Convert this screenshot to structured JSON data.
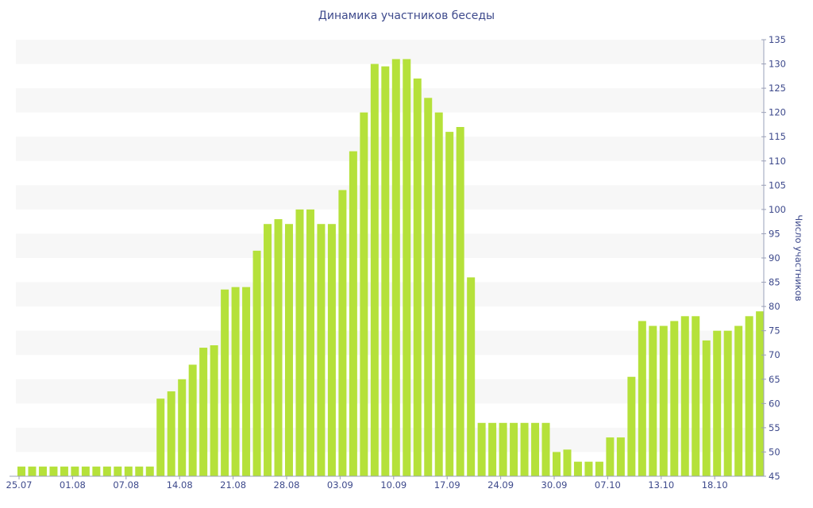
{
  "chart_data": {
    "type": "bar",
    "title": "Динамика участников беседы",
    "ylabel": "Число участников",
    "xlabel": "",
    "ylim": [
      45,
      135
    ],
    "ytick_step": 5,
    "y_axis_side": "right",
    "grid": "alternating horizontal bands",
    "bar_color": "#b5e13a",
    "band_color": "#f7f7f7",
    "text_color": "#3e4a8c",
    "x_tick_labels": [
      "25.07",
      "01.08",
      "07.08",
      "14.08",
      "21.08",
      "28.08",
      "03.09",
      "10.09",
      "17.09",
      "24.09",
      "30.09",
      "07.10",
      "13.10",
      "18.10"
    ],
    "x_tick_at_bar": [
      0,
      5,
      10,
      15,
      20,
      25,
      30,
      35,
      40,
      45,
      50,
      55,
      60,
      65
    ],
    "values": [
      47,
      47,
      47,
      47,
      47,
      47,
      47,
      47,
      47,
      47,
      47,
      47,
      47,
      61,
      62.5,
      65,
      68,
      71.5,
      72,
      83.5,
      84,
      84,
      91.5,
      97,
      98,
      97,
      100,
      100,
      97,
      97,
      104,
      112,
      120,
      130,
      129.5,
      131,
      131,
      127,
      123,
      120,
      116,
      117,
      86,
      56,
      56,
      56,
      56,
      56,
      56,
      56,
      50,
      50.5,
      48,
      48,
      48,
      53,
      53,
      65.5,
      77,
      76,
      76,
      77,
      78,
      78,
      73,
      75,
      75,
      76,
      78,
      79
    ]
  }
}
